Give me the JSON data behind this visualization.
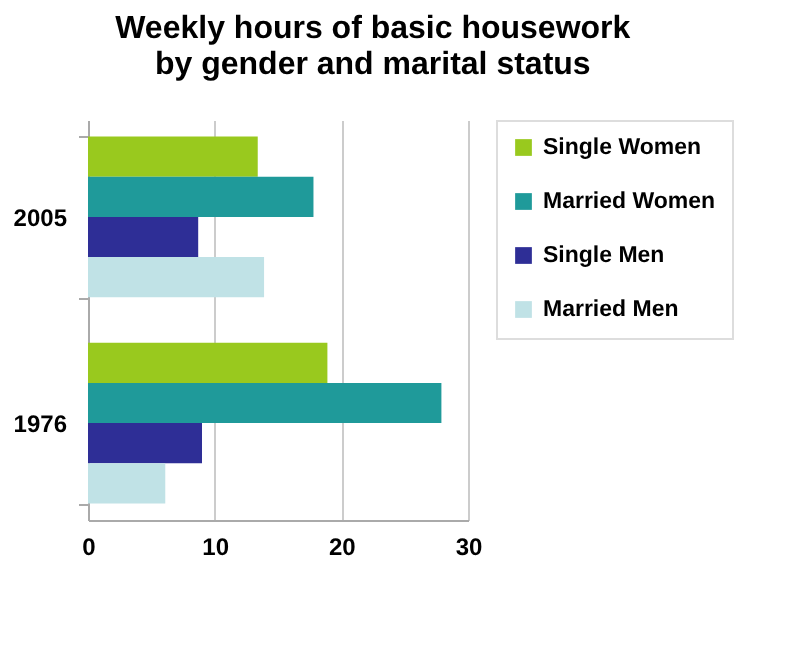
{
  "chart_data": {
    "type": "bar",
    "orientation": "horizontal",
    "title": "Weekly hours of basic housework by gender and marital status",
    "categories": [
      "2005",
      "1976"
    ],
    "series": [
      {
        "name": "Single Women",
        "color": "#99c91e",
        "values": [
          13.4,
          18.9
        ]
      },
      {
        "name": "Married Women",
        "color": "#1f9a9a",
        "values": [
          17.8,
          27.9
        ]
      },
      {
        "name": "Single Men",
        "color": "#2e2e96",
        "values": [
          8.7,
          9.0
        ]
      },
      {
        "name": "Married Men",
        "color": "#c0e2e6",
        "values": [
          13.9,
          6.1
        ]
      }
    ],
    "xlim": [
      0,
      30
    ],
    "xticks": [
      0,
      10,
      20,
      30
    ],
    "grid": "x",
    "legend": "right"
  }
}
